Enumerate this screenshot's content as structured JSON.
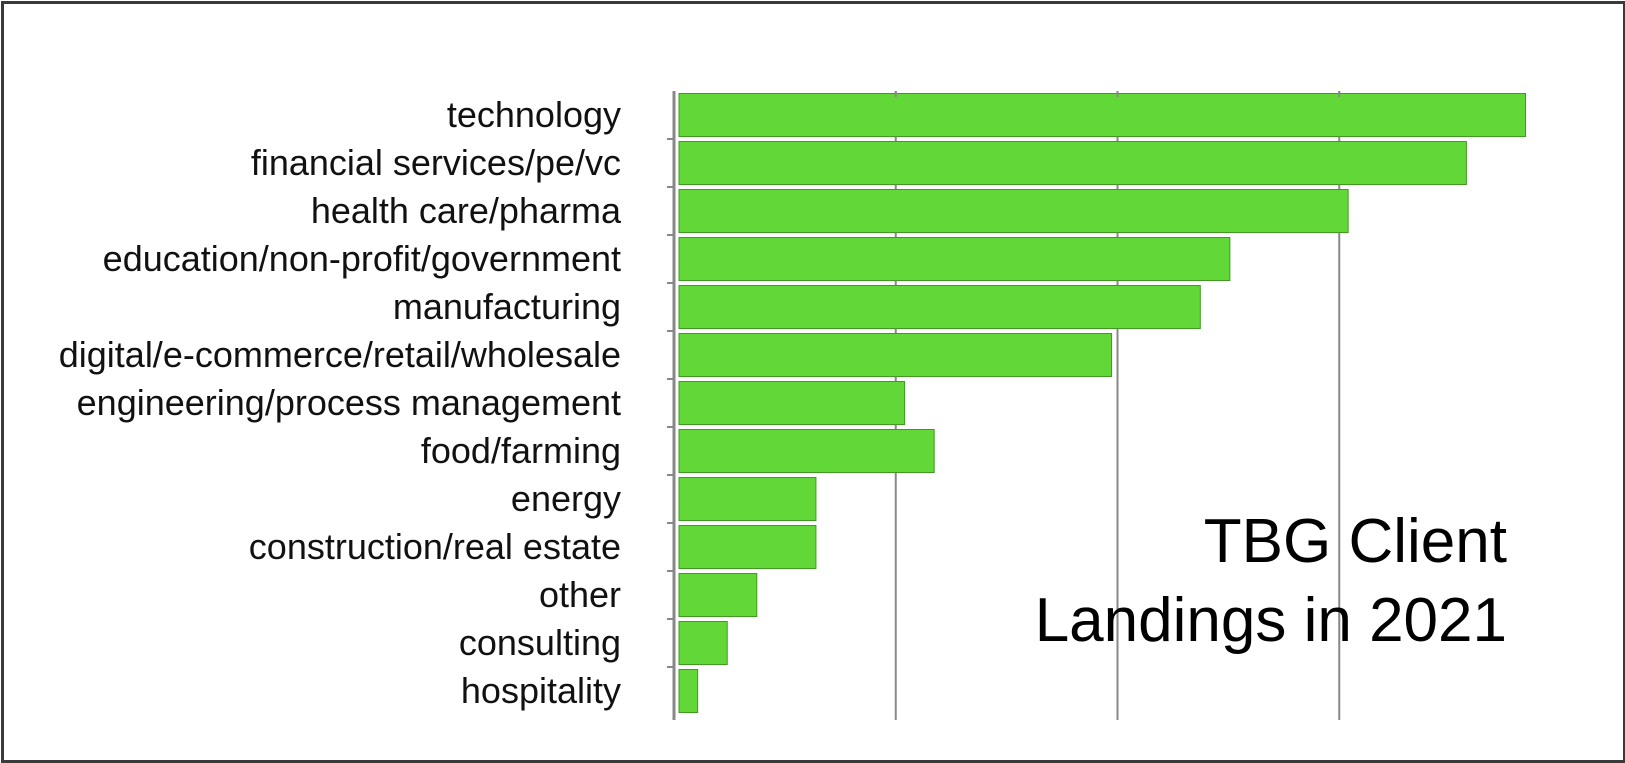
{
  "chart_data": {
    "type": "bar",
    "orientation": "horizontal",
    "title_lines": [
      "TBG Client",
      "Landings in 2021"
    ],
    "categories": [
      "technology",
      "financial services/pe/vc",
      "health care/pharma",
      "education/non-profit/government",
      "manufacturing",
      "digital/e-commerce/retail/wholesale",
      "engineering/process management",
      "food/farming",
      "energy",
      "construction/real estate",
      "other",
      "consulting",
      "hospitality"
    ],
    "values": [
      5.76,
      5.36,
      4.56,
      3.76,
      3.56,
      2.96,
      1.56,
      1.76,
      0.96,
      0.96,
      0.56,
      0.36,
      0.16
    ],
    "xlim": [
      0,
      6
    ],
    "xticks": [
      0,
      1.5,
      3,
      4.5
    ],
    "grid": true,
    "bar_color": "#62d838",
    "bar_edge_color": "#3f9a1f",
    "axis_color": "#888888",
    "legend": false
  }
}
